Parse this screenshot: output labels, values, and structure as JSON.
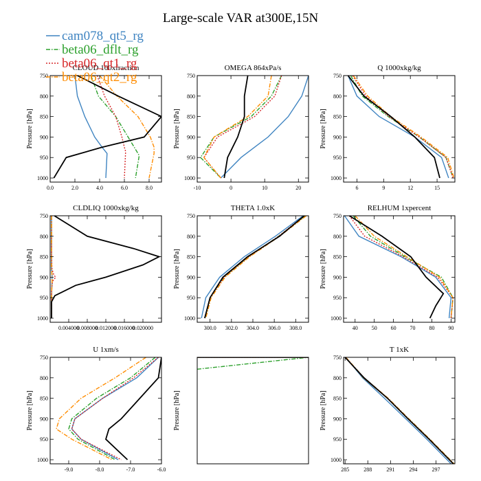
{
  "figure": {
    "title": "Large-scale VAR at300E,15N",
    "legend": [
      {
        "label": "cam078_qt5_rg",
        "color": "#3f84c1",
        "dash": "solid"
      },
      {
        "label": "beta06_dflt_rg",
        "color": "#2ca02c",
        "dash": "dashdot"
      },
      {
        "label": "beta06_qt1_rg",
        "color": "#d62728",
        "dash": "dotted"
      },
      {
        "label": "beta06_qt2_rg",
        "color": "#ff8c00",
        "dash": "dashdot"
      }
    ],
    "reference": {
      "label": "",
      "color": "#000000",
      "dash": "solid"
    }
  },
  "chart_data": [
    {
      "type": "line",
      "title": "CLOUD 100xfraction",
      "xlabel": "",
      "ylabel": "Pressure [hPa]",
      "xlim": [
        0,
        9
      ],
      "ylim": [
        750,
        1010
      ],
      "y_inverted": true,
      "x_ticks": [
        0,
        2,
        4,
        6,
        8
      ],
      "x_tick_labels": [
        "0.0",
        "2.0",
        "4.0",
        "6.0",
        "8.0"
      ],
      "y_ticks": [
        750,
        800,
        850,
        900,
        950,
        1000
      ],
      "y_tick_labels": [
        "750",
        "800",
        "850",
        "900",
        "950",
        "1000"
      ],
      "series": [
        {
          "y": [
            750,
            800,
            850,
            900,
            925,
            940,
            1000
          ],
          "x": [
            2.0,
            2.2,
            2.8,
            3.6,
            4.2,
            4.6,
            4.5
          ]
        },
        {
          "y": [
            750,
            800,
            850,
            900,
            925,
            945,
            1000
          ],
          "x": [
            3.3,
            3.9,
            5.3,
            6.3,
            6.8,
            7.2,
            6.9
          ]
        },
        {
          "y": [
            750,
            800,
            850,
            900,
            925,
            935,
            1000
          ],
          "x": [
            3.8,
            4.4,
            5.3,
            5.8,
            6.0,
            6.1,
            6.0
          ]
        },
        {
          "y": [
            750,
            800,
            850,
            900,
            925,
            940,
            1000
          ],
          "x": [
            4.0,
            5.4,
            7.1,
            8.1,
            8.4,
            8.4,
            8.0
          ]
        },
        {
          "y": [
            750,
            800,
            850,
            900,
            925,
            950,
            1000
          ],
          "x": [
            2.2,
            5.5,
            9.0,
            7.6,
            4.2,
            1.3,
            0.3
          ]
        }
      ]
    },
    {
      "type": "line",
      "title": "OMEGA 864xPa/s",
      "xlabel": "",
      "ylabel": "Pressure [hPa]",
      "xlim": [
        -10,
        23
      ],
      "ylim": [
        750,
        1010
      ],
      "y_inverted": true,
      "x_ticks": [
        -10,
        0,
        10,
        20
      ],
      "x_tick_labels": [
        "-10",
        "0",
        "10",
        "20"
      ],
      "y_ticks": [
        750,
        800,
        850,
        900,
        950,
        1000
      ],
      "y_tick_labels": [
        "750",
        "800",
        "850",
        "900",
        "950",
        "1000"
      ],
      "series": [
        {
          "y": [
            750,
            800,
            850,
            900,
            950,
            1000
          ],
          "x": [
            23,
            21,
            17,
            11,
            3,
            -3
          ]
        },
        {
          "y": [
            750,
            800,
            850,
            900,
            950,
            1000
          ],
          "x": [
            15,
            12,
            6,
            -5,
            -9,
            -3
          ]
        },
        {
          "y": [
            750,
            800,
            850,
            900,
            950,
            1000
          ],
          "x": [
            15,
            13,
            7,
            -4,
            -8,
            -3
          ]
        },
        {
          "y": [
            750,
            800,
            850,
            900,
            950,
            1000
          ],
          "x": [
            12,
            11,
            5,
            -5,
            -8,
            -3
          ]
        },
        {
          "y": [
            750,
            800,
            850,
            900,
            950,
            1000
          ],
          "x": [
            5,
            4,
            4,
            2,
            -1,
            -2
          ]
        }
      ]
    },
    {
      "type": "line",
      "title": "Q 1000xkg/kg",
      "xlabel": "",
      "ylabel": "Pressure [hPa]",
      "xlim": [
        4.5,
        17
      ],
      "ylim": [
        750,
        1010
      ],
      "y_inverted": true,
      "x_ticks": [
        6,
        9,
        12,
        15
      ],
      "x_tick_labels": [
        "6",
        "9",
        "12",
        "15"
      ],
      "y_ticks": [
        750,
        800,
        850,
        900,
        950,
        1000
      ],
      "y_tick_labels": [
        "750",
        "800",
        "850",
        "900",
        "950",
        "1000"
      ],
      "series": [
        {
          "y": [
            750,
            800,
            850,
            900,
            950,
            1000
          ],
          "x": [
            5.0,
            6.0,
            8.5,
            12.5,
            15.5,
            16.3
          ]
        },
        {
          "y": [
            750,
            800,
            850,
            900,
            950,
            1000
          ],
          "x": [
            5.3,
            6.6,
            9.5,
            13.0,
            16.0,
            16.8
          ]
        },
        {
          "y": [
            750,
            800,
            850,
            900,
            950,
            1000
          ],
          "x": [
            5.5,
            7.0,
            9.6,
            13.0,
            16.0,
            16.8
          ]
        },
        {
          "y": [
            750,
            800,
            850,
            900,
            950,
            1000
          ],
          "x": [
            5.6,
            7.2,
            9.8,
            13.2,
            16.2,
            16.9
          ]
        },
        {
          "y": [
            750,
            800,
            850,
            900,
            950,
            1000
          ],
          "x": [
            5.0,
            6.8,
            9.8,
            12.5,
            14.7,
            15.3
          ]
        }
      ]
    },
    {
      "type": "line",
      "title": "CLDLIQ 1000xkg/kg",
      "xlabel": "",
      "ylabel": "Pressure [hPa]",
      "xlim": [
        0,
        0.024
      ],
      "ylim": [
        750,
        1010
      ],
      "y_inverted": true,
      "x_ticks": [
        0.004,
        0.008,
        0.012,
        0.016,
        0.02
      ],
      "x_tick_labels": [
        "0.004000",
        "0.008000",
        "0.012000",
        "0.016000",
        "0.020000"
      ],
      "y_ticks": [
        750,
        800,
        850,
        900,
        950,
        1000
      ],
      "y_tick_labels": [
        "750",
        "800",
        "850",
        "900",
        "950",
        "1000"
      ],
      "series": [
        {
          "y": [
            750,
            850,
            880,
            895,
            900,
            910,
            950,
            1000
          ],
          "x": [
            0.0003,
            0.0003,
            0.0003,
            0.0004,
            0.0004,
            0.0004,
            0.0003,
            0.0003
          ]
        },
        {
          "y": [
            750,
            850,
            880,
            895,
            900,
            910,
            950,
            1000
          ],
          "x": [
            0.0003,
            0.0003,
            0.0003,
            0.0004,
            0.0004,
            0.0004,
            0.0003,
            0.0003
          ]
        },
        {
          "y": [
            750,
            850,
            880,
            895,
            900,
            910,
            930,
            950,
            1000
          ],
          "x": [
            0.0003,
            0.0003,
            0.0004,
            0.0008,
            0.0012,
            0.0005,
            0.0003,
            0.0003,
            0.0003
          ]
        },
        {
          "y": [
            750,
            850,
            880,
            895,
            900,
            910,
            950,
            1000
          ],
          "x": [
            0.0003,
            0.0003,
            0.0003,
            0.0004,
            0.0004,
            0.0004,
            0.0003,
            0.0003
          ]
        },
        {
          "y": [
            750,
            800,
            830,
            850,
            870,
            900,
            920,
            945,
            960,
            1000
          ],
          "x": [
            0.0009,
            0.008,
            0.018,
            0.0235,
            0.02,
            0.012,
            0.0055,
            0.001,
            0.0003,
            0.0003
          ]
        }
      ]
    },
    {
      "type": "line",
      "title": "THETA 1.0xK",
      "xlabel": "",
      "ylabel": "Pressure [hPa]",
      "xlim": [
        298.8,
        309.2
      ],
      "ylim": [
        750,
        1010
      ],
      "y_inverted": true,
      "x_ticks": [
        300,
        302,
        304,
        306,
        308
      ],
      "x_tick_labels": [
        "300.0",
        "302.0",
        "304.0",
        "306.0",
        "308.0"
      ],
      "y_ticks": [
        750,
        800,
        850,
        900,
        950,
        1000
      ],
      "y_tick_labels": [
        "750",
        "800",
        "850",
        "900",
        "950",
        "1000"
      ],
      "series": [
        {
          "y": [
            750,
            800,
            850,
            900,
            950,
            1000
          ],
          "x": [
            308.7,
            306.1,
            303.2,
            300.9,
            299.6,
            299.2
          ]
        },
        {
          "y": [
            750,
            800,
            850,
            900,
            950,
            1000
          ],
          "x": [
            308.9,
            306.4,
            303.6,
            301.3,
            300.0,
            299.6
          ]
        },
        {
          "y": [
            750,
            800,
            850,
            900,
            950,
            1000
          ],
          "x": [
            308.8,
            306.4,
            303.6,
            301.3,
            300.0,
            299.5
          ]
        },
        {
          "y": [
            750,
            800,
            850,
            900,
            950,
            1000
          ],
          "x": [
            309.0,
            306.5,
            303.7,
            301.4,
            300.1,
            299.6
          ]
        },
        {
          "y": [
            750,
            800,
            850,
            900,
            950,
            1000
          ],
          "x": [
            308.8,
            306.5,
            303.5,
            301.2,
            300.0,
            299.5
          ]
        }
      ]
    },
    {
      "type": "line",
      "title": "RELHUM 1xpercent",
      "xlabel": "",
      "ylabel": "Pressure [hPa]",
      "xlim": [
        34,
        92
      ],
      "ylim": [
        750,
        1010
      ],
      "y_inverted": true,
      "x_ticks": [
        40,
        50,
        60,
        70,
        80,
        90
      ],
      "x_tick_labels": [
        "40",
        "50",
        "60",
        "70",
        "80",
        "90"
      ],
      "y_ticks": [
        750,
        800,
        850,
        900,
        950,
        1000
      ],
      "y_tick_labels": [
        "750",
        "800",
        "850",
        "900",
        "950",
        "1000"
      ],
      "series": [
        {
          "y": [
            750,
            800,
            850,
            900,
            950,
            1000
          ],
          "x": [
            34.5,
            42,
            64,
            82,
            90,
            89
          ]
        },
        {
          "y": [
            750,
            800,
            850,
            900,
            950,
            1000
          ],
          "x": [
            39,
            48,
            66,
            85,
            91,
            90
          ]
        },
        {
          "y": [
            750,
            800,
            850,
            900,
            950,
            1000
          ],
          "x": [
            37,
            45,
            65,
            83,
            91,
            90
          ]
        },
        {
          "y": [
            750,
            800,
            850,
            900,
            950,
            1000
          ],
          "x": [
            40,
            50,
            67,
            84,
            91,
            90
          ]
        },
        {
          "y": [
            750,
            800,
            850,
            900,
            940,
            970,
            1000
          ],
          "x": [
            37,
            54,
            69,
            77,
            86,
            82,
            79
          ]
        }
      ]
    },
    {
      "type": "line",
      "title": "U 1xm/s",
      "xlabel": "",
      "ylabel": "Pressure [hPa]",
      "xlim": [
        -9.6,
        -6.0
      ],
      "ylim": [
        750,
        1010
      ],
      "y_inverted": true,
      "x_ticks": [
        -9,
        -8,
        -7,
        -6
      ],
      "x_tick_labels": [
        "-9.0",
        "-8.0",
        "-7.0",
        "-6.0"
      ],
      "y_ticks": [
        750,
        800,
        850,
        900,
        950,
        1000
      ],
      "y_tick_labels": [
        "750",
        "800",
        "850",
        "900",
        "950",
        "1000"
      ],
      "series": [
        {
          "y": [
            750,
            800,
            850,
            900,
            925,
            950,
            1000
          ],
          "x": [
            -6.1,
            -6.8,
            -7.9,
            -8.8,
            -8.9,
            -8.6,
            -7.4
          ]
        },
        {
          "y": [
            750,
            800,
            850,
            900,
            925,
            950,
            1000
          ],
          "x": [
            -6.2,
            -7.0,
            -8.1,
            -8.9,
            -9.0,
            -8.7,
            -7.5
          ]
        },
        {
          "y": [
            750,
            800,
            850,
            900,
            925,
            950,
            1000
          ],
          "x": [
            -6.1,
            -6.9,
            -7.9,
            -8.8,
            -8.9,
            -8.6,
            -7.3
          ]
        },
        {
          "y": [
            750,
            800,
            850,
            900,
            925,
            950,
            1000
          ],
          "x": [
            -6.5,
            -7.5,
            -8.6,
            -9.3,
            -9.4,
            -8.9,
            -7.6
          ]
        },
        {
          "y": [
            750,
            800,
            850,
            900,
            925,
            950,
            1000
          ],
          "x": [
            -6.0,
            -6.1,
            -6.7,
            -7.3,
            -7.7,
            -7.8,
            -7.1
          ]
        }
      ]
    },
    {
      "type": "line",
      "title": "",
      "xlabel": "",
      "ylabel": "Pressure [hPa]",
      "xlim": [
        0,
        1
      ],
      "ylim": [
        750,
        1010
      ],
      "y_inverted": true,
      "x_ticks": [],
      "x_tick_labels": [],
      "y_ticks": [],
      "y_tick_labels": [],
      "series": [
        {
          "y": [
            750,
            750
          ],
          "x": [
            0,
            1
          ]
        },
        {
          "y": [
            779,
            750
          ],
          "x": [
            0,
            1
          ]
        },
        {
          "y": [
            750,
            750
          ],
          "x": [
            0,
            1
          ]
        },
        {
          "y": [
            750,
            750
          ],
          "x": [
            0,
            1
          ]
        },
        {
          "y": [
            750,
            750
          ],
          "x": [
            0,
            1
          ]
        }
      ]
    },
    {
      "type": "line",
      "title": "T 1xK",
      "xlabel": "",
      "ylabel": "Pressure [hPa]",
      "xlim": [
        284.8,
        299.5
      ],
      "ylim": [
        750,
        1010
      ],
      "y_inverted": true,
      "x_ticks": [
        285,
        288,
        291,
        294,
        297
      ],
      "x_tick_labels": [
        "285",
        "288",
        "291",
        "294",
        "297"
      ],
      "y_ticks": [
        750,
        800,
        850,
        900,
        950,
        1000
      ],
      "y_tick_labels": [
        "750",
        "800",
        "850",
        "900",
        "950",
        "1000"
      ],
      "series": [
        {
          "y": [
            750,
            800,
            850,
            900,
            950,
            1010
          ],
          "x": [
            285.1,
            287.3,
            290.2,
            293.0,
            295.8,
            299.0
          ]
        },
        {
          "y": [
            750,
            800,
            850,
            900,
            950,
            1010
          ],
          "x": [
            285.1,
            287.4,
            290.6,
            293.4,
            296.2,
            299.4
          ]
        },
        {
          "y": [
            750,
            800,
            850,
            900,
            950,
            1010
          ],
          "x": [
            285.1,
            287.4,
            290.6,
            293.3,
            296.1,
            299.3
          ]
        },
        {
          "y": [
            750,
            800,
            850,
            900,
            950,
            1010
          ],
          "x": [
            285.1,
            287.5,
            290.7,
            293.4,
            296.2,
            299.4
          ]
        },
        {
          "y": [
            750,
            800,
            850,
            900,
            950,
            1010
          ],
          "x": [
            285.0,
            287.5,
            290.6,
            293.3,
            296.1,
            299.3
          ]
        }
      ]
    }
  ]
}
